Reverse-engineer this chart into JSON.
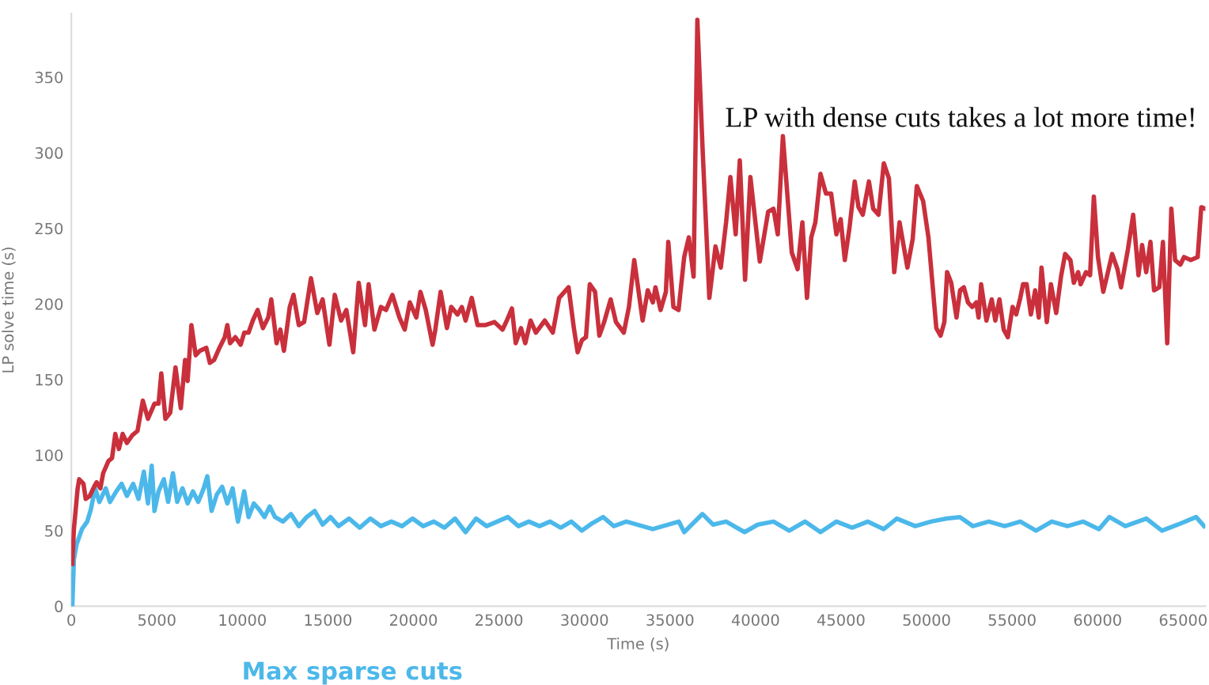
{
  "chart_data": {
    "type": "line",
    "xlabel": "Time (s)",
    "ylabel": "LP solve time (s)",
    "annotations": [
      "LP with dense cuts takes a lot more time!"
    ],
    "xlim": [
      0,
      66300
    ],
    "ylim": [
      0,
      392
    ],
    "xticks": [
      0,
      5000,
      10000,
      15000,
      20000,
      25000,
      30000,
      35000,
      40000,
      45000,
      50000,
      55000,
      60000,
      65000
    ],
    "yticks": [
      0,
      50,
      100,
      150,
      200,
      250,
      300,
      350
    ],
    "grid": false,
    "legend": false,
    "marker": "none",
    "line_style": "solid",
    "series": [
      {
        "color": "#c9303c",
        "x": [
          60,
          150,
          370,
          460,
          710,
          840,
          1080,
          1330,
          1480,
          1700,
          1860,
          2170,
          2380,
          2570,
          2780,
          3000,
          3250,
          3560,
          3870,
          4180,
          4480,
          4860,
          5100,
          5260,
          5500,
          5780,
          6090,
          6400,
          6650,
          6800,
          7020,
          7270,
          7520,
          7890,
          8100,
          8350,
          8660,
          8970,
          9120,
          9280,
          9590,
          9900,
          10110,
          10360,
          10610,
          10890,
          11200,
          11510,
          11690,
          12000,
          12220,
          12430,
          12770,
          12990,
          13300,
          13610,
          14010,
          14380,
          14690,
          15090,
          15400,
          15770,
          16080,
          16480,
          16800,
          17170,
          17380,
          17720,
          18100,
          18400,
          18770,
          19180,
          19490,
          19790,
          20170,
          20410,
          20720,
          21120,
          21280,
          21590,
          21960,
          22210,
          22580,
          22830,
          23050,
          23410,
          23750,
          24220,
          24740,
          25210,
          25460,
          25760,
          25980,
          26290,
          26540,
          26850,
          27160,
          27680,
          28150,
          28520,
          29070,
          29380,
          29600,
          29850,
          30090,
          30310,
          30620,
          30870,
          31150,
          31530,
          31840,
          32300,
          32600,
          32910,
          33400,
          33700,
          34000,
          34150,
          34450,
          34760,
          34900,
          35200,
          35500,
          35830,
          36100,
          36380,
          36600,
          36900,
          37300,
          37660,
          37970,
          38280,
          38530,
          38840,
          39080,
          39390,
          39700,
          40250,
          40740,
          41050,
          41300,
          41600,
          42120,
          42460,
          42740,
          43010,
          43260,
          43500,
          43800,
          44120,
          44420,
          44730,
          44980,
          45220,
          45500,
          45800,
          46020,
          46270,
          46630,
          46880,
          47190,
          47500,
          47800,
          48110,
          48420,
          48880,
          49190,
          49430,
          49800,
          50110,
          50570,
          50820,
          51040,
          51200,
          51440,
          51750,
          51960,
          52180,
          52420,
          52670,
          52910,
          53040,
          53190,
          53500,
          53810,
          54020,
          54260,
          54510,
          54750,
          55030,
          55240,
          55480,
          55640,
          55850,
          56100,
          56350,
          56560,
          56720,
          57030,
          57270,
          57580,
          57860,
          58100,
          58410,
          58610,
          58860,
          59010,
          59320,
          59560,
          59780,
          60020,
          60330,
          60540,
          60850,
          61160,
          61370,
          61770,
          62080,
          62390,
          62600,
          62840,
          63090,
          63300,
          63610,
          63820,
          64070,
          64310,
          64530,
          64840,
          65050,
          65450,
          65850,
          66060,
          66280
        ],
        "values": [
          28,
          51,
          78,
          84,
          81,
          71,
          73,
          79,
          82,
          78,
          88,
          96,
          98,
          114,
          104,
          114,
          108,
          113,
          116,
          136,
          124,
          134,
          134,
          154,
          124,
          128,
          158,
          131,
          163,
          149,
          186,
          166,
          169,
          171,
          161,
          163,
          171,
          178,
          186,
          174,
          178,
          173,
          181,
          181,
          189,
          196,
          184,
          191,
          203,
          174,
          183,
          169,
          198,
          206,
          186,
          188,
          217,
          194,
          203,
          173,
          206,
          189,
          196,
          168,
          214,
          186,
          213,
          183,
          198,
          196,
          206,
          191,
          183,
          201,
          191,
          208,
          196,
          173,
          183,
          208,
          184,
          198,
          193,
          198,
          189,
          204,
          186,
          186,
          188,
          183,
          189,
          197,
          174,
          184,
          174,
          189,
          181,
          189,
          181,
          204,
          211,
          184,
          168,
          176,
          178,
          213,
          208,
          179,
          188,
          203,
          188,
          181,
          198,
          229,
          189,
          209,
          201,
          211,
          196,
          208,
          241,
          198,
          196,
          231,
          244,
          218,
          388,
          304,
          204,
          238,
          224,
          254,
          284,
          246,
          295,
          216,
          284,
          228,
          261,
          263,
          246,
          311,
          234,
          223,
          254,
          204,
          244,
          254,
          286,
          273,
          273,
          246,
          256,
          229,
          251,
          281,
          264,
          259,
          281,
          263,
          259,
          293,
          283,
          221,
          254,
          224,
          243,
          278,
          268,
          244,
          184,
          179,
          188,
          221,
          214,
          191,
          209,
          211,
          201,
          198,
          201,
          191,
          213,
          189,
          203,
          189,
          203,
          183,
          178,
          198,
          193,
          204,
          213,
          213,
          193,
          209,
          191,
          224,
          188,
          213,
          194,
          218,
          233,
          229,
          214,
          221,
          213,
          221,
          219,
          271,
          231,
          208,
          218,
          233,
          223,
          211,
          236,
          259,
          219,
          239,
          221,
          241,
          209,
          211,
          241,
          174,
          263,
          229,
          226,
          231,
          229,
          231,
          264,
          263
        ]
      },
      {
        "name": "Max sparse cuts",
        "color": "#4cb8ea",
        "x": [
          60,
          150,
          310,
          620,
          930,
          1140,
          1390,
          1640,
          2010,
          2260,
          2630,
          2940,
          3250,
          3620,
          3930,
          4240,
          4480,
          4700,
          4860,
          5100,
          5410,
          5660,
          5940,
          6190,
          6500,
          6800,
          7110,
          7420,
          7740,
          7950,
          8200,
          8510,
          8820,
          9120,
          9430,
          9740,
          10110,
          10360,
          10670,
          10980,
          11290,
          11600,
          11910,
          12370,
          12840,
          13300,
          13760,
          14230,
          14690,
          15150,
          15620,
          16240,
          16860,
          17480,
          18100,
          18710,
          19330,
          19950,
          20570,
          21190,
          21810,
          22430,
          23050,
          23660,
          24280,
          24900,
          25520,
          26140,
          26750,
          27370,
          27990,
          28610,
          29230,
          29850,
          30470,
          31090,
          31710,
          32450,
          33990,
          35520,
          35830,
          36900,
          37520,
          38280,
          39360,
          40130,
          41050,
          41970,
          42890,
          43800,
          44730,
          45650,
          46570,
          47500,
          48260,
          49340,
          50260,
          51180,
          51950,
          52710,
          53640,
          54560,
          55480,
          56400,
          57320,
          58240,
          59160,
          60080,
          60690,
          61620,
          62840,
          63760,
          64690,
          65760,
          66220
        ],
        "values": [
          0,
          31,
          41,
          51,
          56,
          64,
          78,
          69,
          78,
          69,
          76,
          81,
          73,
          81,
          71,
          89,
          68,
          93,
          63,
          76,
          84,
          69,
          88,
          69,
          78,
          68,
          76,
          69,
          78,
          86,
          63,
          74,
          79,
          68,
          78,
          56,
          76,
          59,
          68,
          64,
          59,
          66,
          59,
          56,
          61,
          53,
          59,
          63,
          54,
          59,
          53,
          58,
          52,
          58,
          53,
          56,
          53,
          58,
          53,
          56,
          52,
          58,
          49,
          58,
          53,
          56,
          59,
          53,
          56,
          53,
          56,
          52,
          56,
          50,
          55,
          59,
          53,
          56,
          51,
          56,
          49,
          61,
          54,
          56,
          49,
          54,
          56,
          50,
          56,
          49,
          56,
          52,
          56,
          51,
          58,
          53,
          56,
          58,
          59,
          53,
          56,
          53,
          56,
          50,
          56,
          53,
          56,
          51,
          59,
          53,
          58,
          50,
          54,
          59,
          53
        ]
      }
    ]
  }
}
